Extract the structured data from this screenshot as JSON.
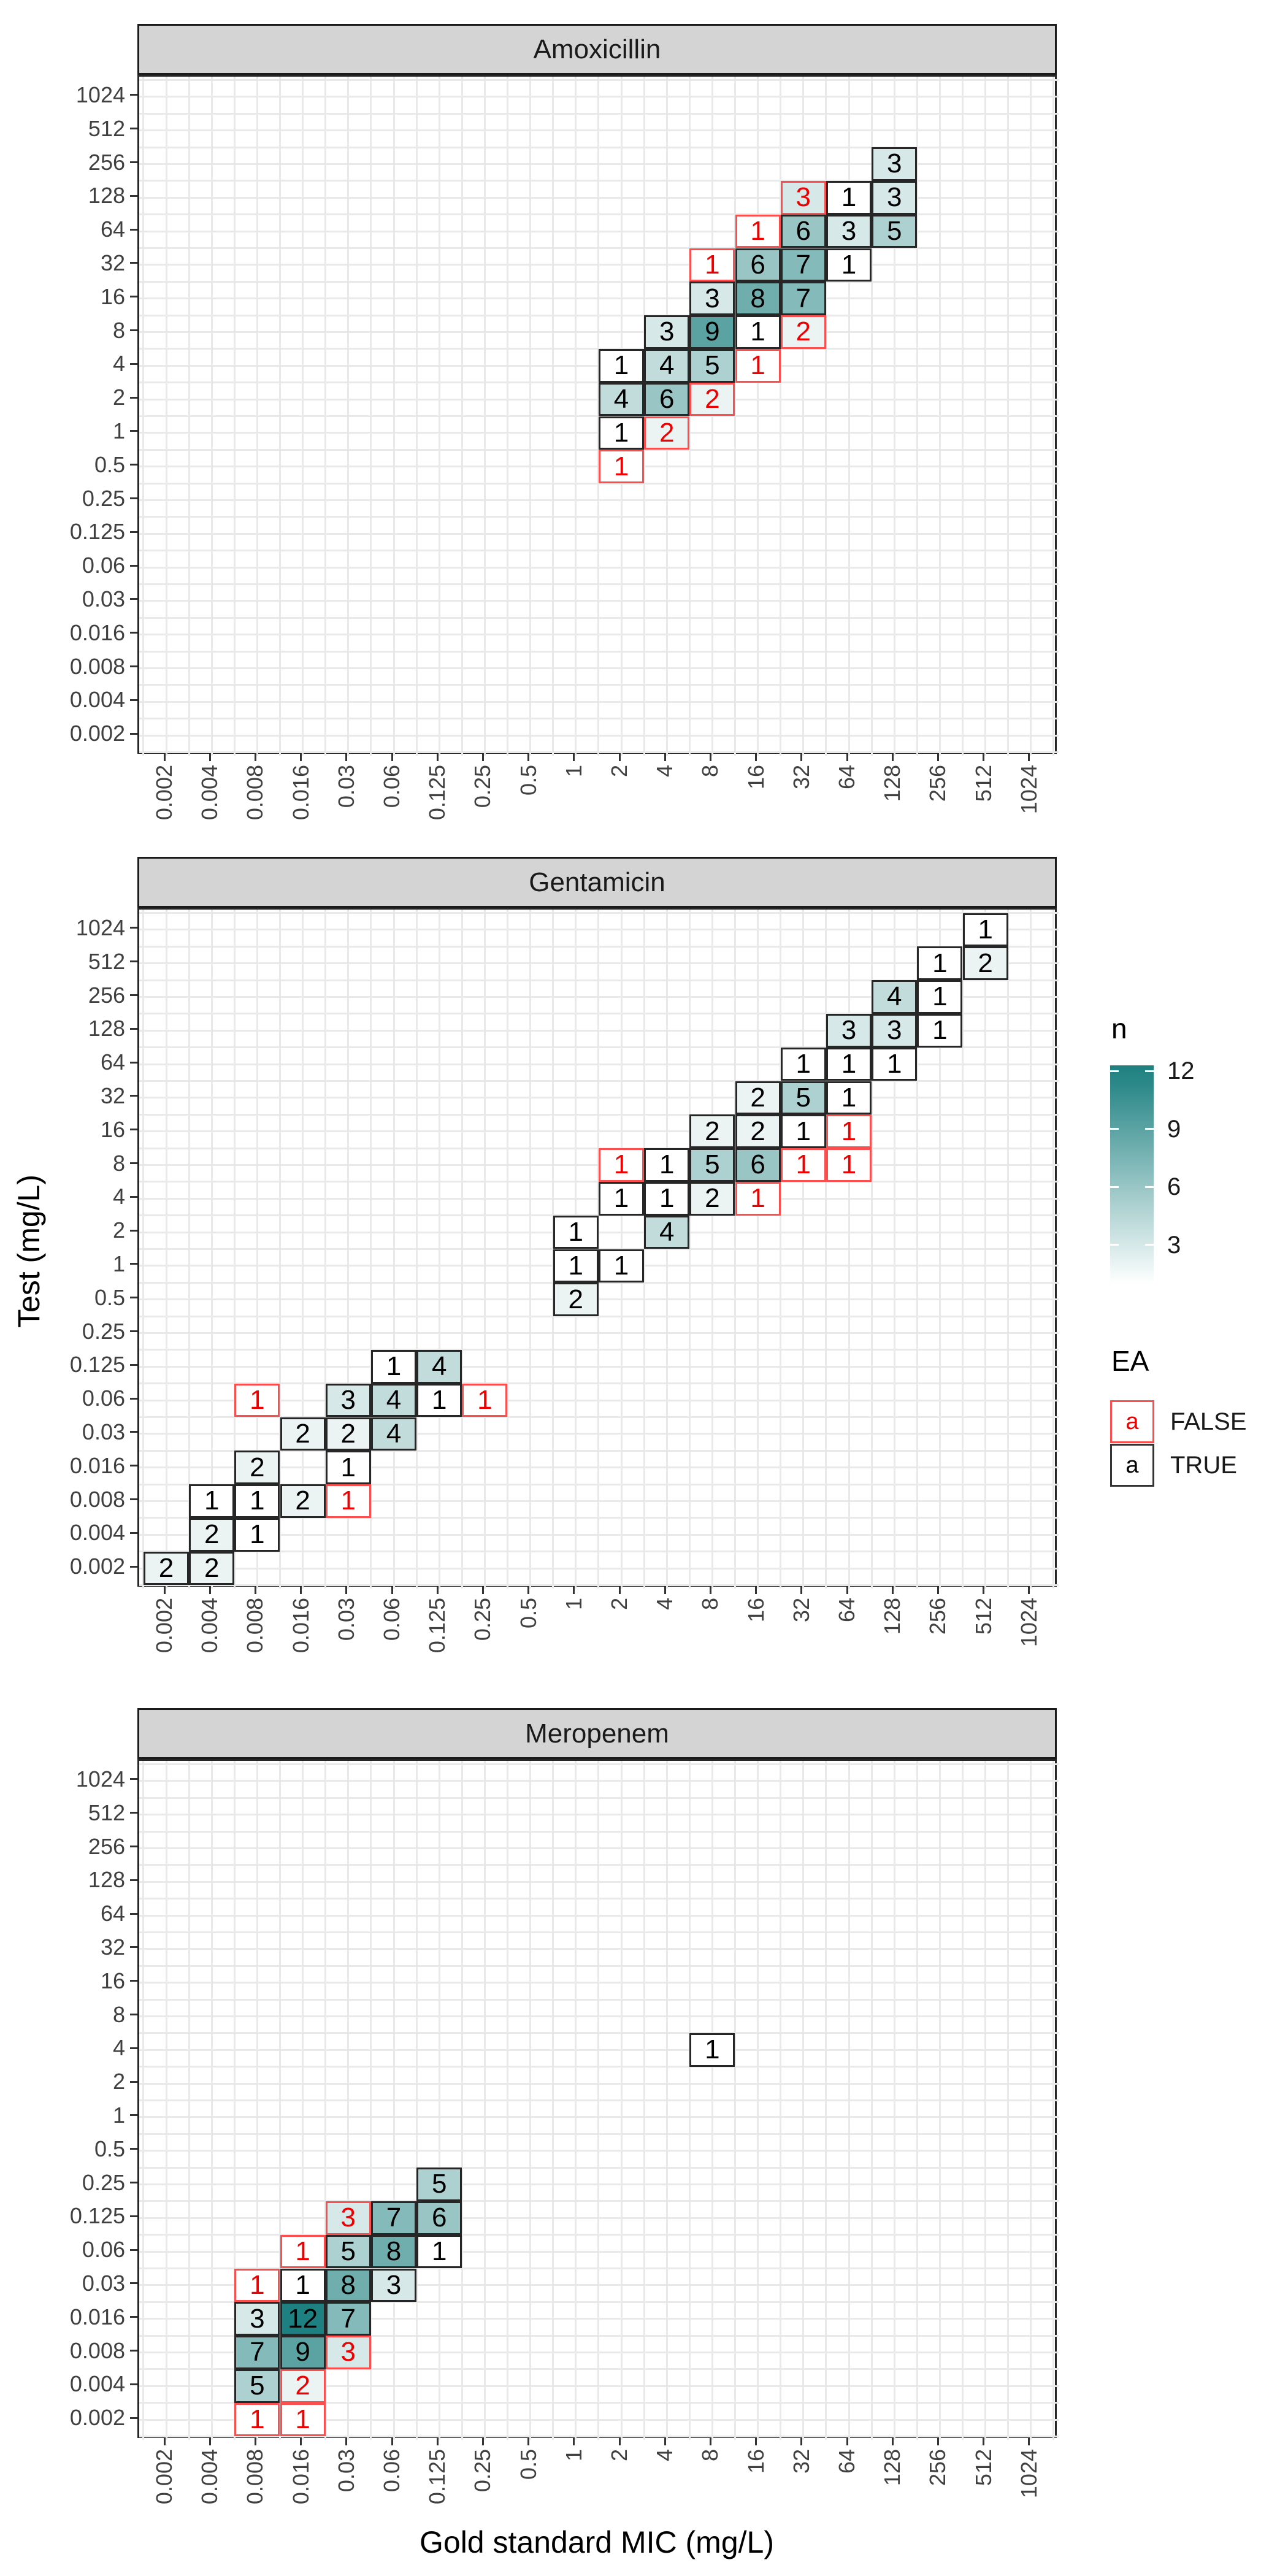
{
  "axes": {
    "categories": [
      "0.002",
      "0.004",
      "0.008",
      "0.016",
      "0.03",
      "0.06",
      "0.125",
      "0.25",
      "0.5",
      "1",
      "2",
      "4",
      "8",
      "16",
      "32",
      "64",
      "128",
      "256",
      "512",
      "1024"
    ],
    "x_title": "Gold standard MIC (mg/L)",
    "y_title": "Test (mg/L)"
  },
  "legend": {
    "n": {
      "title": "n",
      "tick_labels": [
        "12",
        "9",
        "6",
        "3"
      ],
      "tick_values": [
        12,
        9,
        6,
        3
      ],
      "min_value": 1,
      "max_value": 12.3
    },
    "ea": {
      "title": "EA",
      "items": [
        {
          "glyph": "a",
          "label": "FALSE",
          "state": "false"
        },
        {
          "glyph": "a",
          "label": "TRUE",
          "state": "true"
        }
      ]
    }
  },
  "colors": {
    "teal_max": "#1E8080",
    "tile_min": "#FFFFFF",
    "red_text": "#EE0000",
    "red_border": "#FB4F4F",
    "black_text": "#000000",
    "black_border": "#262626",
    "strip_fill": "#D4D4D4",
    "grid": "#E9E9E9",
    "axis_text": "#404040"
  },
  "chart_data": {
    "type": "heatmap",
    "title": "",
    "xlabel": "Gold standard MIC (mg/L)",
    "ylabel": "Test (mg/L)",
    "categories": [
      "0.002",
      "0.004",
      "0.008",
      "0.016",
      "0.03",
      "0.06",
      "0.125",
      "0.25",
      "0.5",
      "1",
      "2",
      "4",
      "8",
      "16",
      "32",
      "64",
      "128",
      "256",
      "512",
      "1024"
    ],
    "fill_range": [
      1,
      12
    ],
    "legend_position": "right",
    "facets": [
      {
        "name": "Amoxicillin",
        "tiles": [
          {
            "x": "128",
            "y": "256",
            "n": 3,
            "ea": true
          },
          {
            "x": "32",
            "y": "128",
            "n": 3,
            "ea": false
          },
          {
            "x": "64",
            "y": "128",
            "n": 1,
            "ea": true
          },
          {
            "x": "128",
            "y": "128",
            "n": 3,
            "ea": true
          },
          {
            "x": "16",
            "y": "64",
            "n": 1,
            "ea": false
          },
          {
            "x": "32",
            "y": "64",
            "n": 6,
            "ea": true
          },
          {
            "x": "64",
            "y": "64",
            "n": 3,
            "ea": true
          },
          {
            "x": "128",
            "y": "64",
            "n": 5,
            "ea": true
          },
          {
            "x": "8",
            "y": "32",
            "n": 1,
            "ea": false
          },
          {
            "x": "16",
            "y": "32",
            "n": 6,
            "ea": true
          },
          {
            "x": "32",
            "y": "32",
            "n": 7,
            "ea": true
          },
          {
            "x": "64",
            "y": "32",
            "n": 1,
            "ea": true
          },
          {
            "x": "8",
            "y": "16",
            "n": 3,
            "ea": true
          },
          {
            "x": "16",
            "y": "16",
            "n": 8,
            "ea": true
          },
          {
            "x": "32",
            "y": "16",
            "n": 7,
            "ea": true
          },
          {
            "x": "4",
            "y": "8",
            "n": 3,
            "ea": true
          },
          {
            "x": "8",
            "y": "8",
            "n": 9,
            "ea": true
          },
          {
            "x": "16",
            "y": "8",
            "n": 1,
            "ea": true
          },
          {
            "x": "32",
            "y": "8",
            "n": 2,
            "ea": false
          },
          {
            "x": "2",
            "y": "4",
            "n": 1,
            "ea": true
          },
          {
            "x": "4",
            "y": "4",
            "n": 4,
            "ea": true
          },
          {
            "x": "8",
            "y": "4",
            "n": 5,
            "ea": true
          },
          {
            "x": "16",
            "y": "4",
            "n": 1,
            "ea": false
          },
          {
            "x": "2",
            "y": "2",
            "n": 4,
            "ea": true
          },
          {
            "x": "4",
            "y": "2",
            "n": 6,
            "ea": true
          },
          {
            "x": "8",
            "y": "2",
            "n": 2,
            "ea": false
          },
          {
            "x": "2",
            "y": "1",
            "n": 1,
            "ea": true
          },
          {
            "x": "4",
            "y": "1",
            "n": 2,
            "ea": false
          },
          {
            "x": "2",
            "y": "0.5",
            "n": 1,
            "ea": false
          }
        ]
      },
      {
        "name": "Gentamicin",
        "tiles": [
          {
            "x": "512",
            "y": "1024",
            "n": 1,
            "ea": true
          },
          {
            "x": "256",
            "y": "512",
            "n": 1,
            "ea": true
          },
          {
            "x": "512",
            "y": "512",
            "n": 2,
            "ea": true
          },
          {
            "x": "128",
            "y": "256",
            "n": 4,
            "ea": true
          },
          {
            "x": "256",
            "y": "256",
            "n": 1,
            "ea": true
          },
          {
            "x": "64",
            "y": "128",
            "n": 3,
            "ea": true
          },
          {
            "x": "128",
            "y": "128",
            "n": 3,
            "ea": true
          },
          {
            "x": "256",
            "y": "128",
            "n": 1,
            "ea": true
          },
          {
            "x": "32",
            "y": "64",
            "n": 1,
            "ea": true
          },
          {
            "x": "64",
            "y": "64",
            "n": 1,
            "ea": true
          },
          {
            "x": "128",
            "y": "64",
            "n": 1,
            "ea": true
          },
          {
            "x": "16",
            "y": "32",
            "n": 2,
            "ea": true
          },
          {
            "x": "32",
            "y": "32",
            "n": 5,
            "ea": true
          },
          {
            "x": "64",
            "y": "32",
            "n": 1,
            "ea": true
          },
          {
            "x": "8",
            "y": "16",
            "n": 2,
            "ea": true
          },
          {
            "x": "16",
            "y": "16",
            "n": 2,
            "ea": true
          },
          {
            "x": "32",
            "y": "16",
            "n": 1,
            "ea": true
          },
          {
            "x": "64",
            "y": "16",
            "n": 1,
            "ea": false
          },
          {
            "x": "2",
            "y": "8",
            "n": 1,
            "ea": false
          },
          {
            "x": "4",
            "y": "8",
            "n": 1,
            "ea": true
          },
          {
            "x": "8",
            "y": "8",
            "n": 5,
            "ea": true
          },
          {
            "x": "16",
            "y": "8",
            "n": 6,
            "ea": true
          },
          {
            "x": "32",
            "y": "8",
            "n": 1,
            "ea": false
          },
          {
            "x": "64",
            "y": "8",
            "n": 1,
            "ea": false
          },
          {
            "x": "2",
            "y": "4",
            "n": 1,
            "ea": true
          },
          {
            "x": "4",
            "y": "4",
            "n": 1,
            "ea": true
          },
          {
            "x": "8",
            "y": "4",
            "n": 2,
            "ea": true
          },
          {
            "x": "16",
            "y": "4",
            "n": 1,
            "ea": false
          },
          {
            "x": "1",
            "y": "2",
            "n": 1,
            "ea": true
          },
          {
            "x": "4",
            "y": "2",
            "n": 4,
            "ea": true
          },
          {
            "x": "1",
            "y": "1",
            "n": 1,
            "ea": true
          },
          {
            "x": "2",
            "y": "1",
            "n": 1,
            "ea": true
          },
          {
            "x": "1",
            "y": "0.5",
            "n": 2,
            "ea": true
          },
          {
            "x": "0.06",
            "y": "0.125",
            "n": 1,
            "ea": true
          },
          {
            "x": "0.125",
            "y": "0.125",
            "n": 4,
            "ea": true
          },
          {
            "x": "0.008",
            "y": "0.06",
            "n": 1,
            "ea": false
          },
          {
            "x": "0.03",
            "y": "0.06",
            "n": 3,
            "ea": true
          },
          {
            "x": "0.06",
            "y": "0.06",
            "n": 4,
            "ea": true
          },
          {
            "x": "0.125",
            "y": "0.06",
            "n": 1,
            "ea": true
          },
          {
            "x": "0.25",
            "y": "0.06",
            "n": 1,
            "ea": false
          },
          {
            "x": "0.016",
            "y": "0.03",
            "n": 2,
            "ea": true
          },
          {
            "x": "0.03",
            "y": "0.03",
            "n": 2,
            "ea": true
          },
          {
            "x": "0.06",
            "y": "0.03",
            "n": 4,
            "ea": true
          },
          {
            "x": "0.008",
            "y": "0.016",
            "n": 2,
            "ea": true
          },
          {
            "x": "0.03",
            "y": "0.016",
            "n": 1,
            "ea": true
          },
          {
            "x": "0.004",
            "y": "0.008",
            "n": 1,
            "ea": true
          },
          {
            "x": "0.008",
            "y": "0.008",
            "n": 1,
            "ea": true
          },
          {
            "x": "0.016",
            "y": "0.008",
            "n": 2,
            "ea": true
          },
          {
            "x": "0.03",
            "y": "0.008",
            "n": 1,
            "ea": false
          },
          {
            "x": "0.004",
            "y": "0.004",
            "n": 2,
            "ea": true
          },
          {
            "x": "0.008",
            "y": "0.004",
            "n": 1,
            "ea": true
          },
          {
            "x": "0.002",
            "y": "0.002",
            "n": 2,
            "ea": true
          },
          {
            "x": "0.004",
            "y": "0.002",
            "n": 2,
            "ea": true
          }
        ]
      },
      {
        "name": "Meropenem",
        "tiles": [
          {
            "x": "8",
            "y": "4",
            "n": 1,
            "ea": true
          },
          {
            "x": "0.125",
            "y": "0.25",
            "n": 5,
            "ea": true
          },
          {
            "x": "0.03",
            "y": "0.125",
            "n": 3,
            "ea": false
          },
          {
            "x": "0.06",
            "y": "0.125",
            "n": 7,
            "ea": true
          },
          {
            "x": "0.125",
            "y": "0.125",
            "n": 6,
            "ea": true
          },
          {
            "x": "0.016",
            "y": "0.06",
            "n": 1,
            "ea": false
          },
          {
            "x": "0.03",
            "y": "0.06",
            "n": 5,
            "ea": true
          },
          {
            "x": "0.06",
            "y": "0.06",
            "n": 8,
            "ea": true
          },
          {
            "x": "0.125",
            "y": "0.06",
            "n": 1,
            "ea": true
          },
          {
            "x": "0.008",
            "y": "0.03",
            "n": 1,
            "ea": false
          },
          {
            "x": "0.016",
            "y": "0.03",
            "n": 1,
            "ea": true
          },
          {
            "x": "0.03",
            "y": "0.03",
            "n": 8,
            "ea": true
          },
          {
            "x": "0.06",
            "y": "0.03",
            "n": 3,
            "ea": true
          },
          {
            "x": "0.008",
            "y": "0.016",
            "n": 3,
            "ea": true
          },
          {
            "x": "0.016",
            "y": "0.016",
            "n": 12,
            "ea": true
          },
          {
            "x": "0.03",
            "y": "0.016",
            "n": 7,
            "ea": true
          },
          {
            "x": "0.008",
            "y": "0.008",
            "n": 7,
            "ea": true
          },
          {
            "x": "0.016",
            "y": "0.008",
            "n": 9,
            "ea": true
          },
          {
            "x": "0.03",
            "y": "0.008",
            "n": 3,
            "ea": false
          },
          {
            "x": "0.008",
            "y": "0.004",
            "n": 5,
            "ea": true
          },
          {
            "x": "0.016",
            "y": "0.004",
            "n": 2,
            "ea": false
          },
          {
            "x": "0.008",
            "y": "0.002",
            "n": 1,
            "ea": false
          },
          {
            "x": "0.016",
            "y": "0.002",
            "n": 1,
            "ea": false
          }
        ]
      }
    ]
  }
}
